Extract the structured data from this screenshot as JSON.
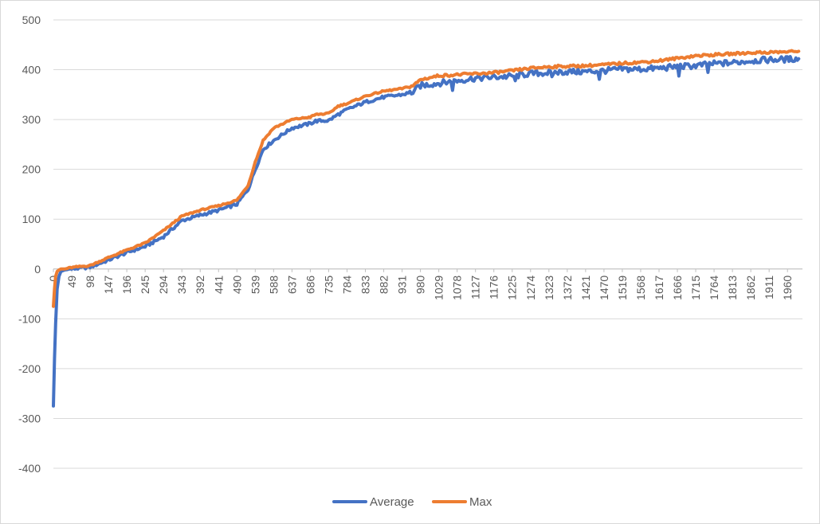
{
  "chart_data": {
    "type": "line",
    "title": "",
    "xlabel": "",
    "ylabel": "",
    "ylim": [
      -400,
      500
    ],
    "y_ticks": [
      500,
      400,
      300,
      200,
      100,
      0,
      -100,
      -200,
      -300,
      -400
    ],
    "x_range": [
      0,
      2000
    ],
    "x_ticks": [
      "0",
      "49",
      "98",
      "147",
      "196",
      "245",
      "294",
      "343",
      "392",
      "441",
      "490",
      "539",
      "588",
      "637",
      "686",
      "735",
      "784",
      "833",
      "882",
      "931",
      "980",
      "1029",
      "1078",
      "1127",
      "1176",
      "1225",
      "1274",
      "1323",
      "1372",
      "1421",
      "1470",
      "1519",
      "1568",
      "1617",
      "1666",
      "1715",
      "1764",
      "1813",
      "1862",
      "1911",
      "1960"
    ],
    "grid": "horizontal",
    "legend_position": "bottom",
    "series": [
      {
        "name": "Average",
        "color": "#4472C4",
        "x": [
          0,
          3,
          6,
          10,
          15,
          20,
          30,
          49,
          98,
          147,
          196,
          245,
          294,
          343,
          392,
          441,
          490,
          520,
          539,
          560,
          588,
          637,
          686,
          700,
          735,
          760,
          784,
          833,
          882,
          931,
          960,
          980,
          1029,
          1078,
          1127,
          1176,
          1225,
          1274,
          1323,
          1372,
          1421,
          1470,
          1519,
          1568,
          1617,
          1666,
          1715,
          1764,
          1813,
          1862,
          1911,
          1960,
          1990
        ],
        "values": [
          -275,
          -180,
          -110,
          -40,
          -15,
          -5,
          -2,
          0,
          4,
          18,
          33,
          45,
          65,
          97,
          108,
          118,
          130,
          160,
          200,
          240,
          258,
          283,
          292,
          297,
          298,
          310,
          320,
          335,
          345,
          350,
          355,
          368,
          373,
          378,
          383,
          385,
          387,
          392,
          394,
          396,
          396,
          398,
          401,
          401,
          403,
          406,
          408,
          412,
          414,
          418,
          420,
          421,
          422
        ]
      },
      {
        "name": "Max",
        "color": "#ED7D31",
        "x": [
          0,
          3,
          6,
          10,
          15,
          20,
          30,
          49,
          98,
          147,
          196,
          245,
          294,
          343,
          392,
          441,
          490,
          520,
          539,
          560,
          588,
          637,
          686,
          700,
          735,
          760,
          784,
          833,
          882,
          931,
          960,
          980,
          1029,
          1078,
          1127,
          1176,
          1225,
          1274,
          1323,
          1372,
          1421,
          1470,
          1519,
          1568,
          1617,
          1666,
          1715,
          1764,
          1813,
          1862,
          1911,
          1960,
          1990
        ],
        "values": [
          -75,
          -40,
          -15,
          -5,
          -2,
          0,
          0,
          3,
          7,
          23,
          38,
          52,
          77,
          106,
          118,
          127,
          138,
          168,
          215,
          258,
          283,
          300,
          305,
          310,
          312,
          327,
          332,
          347,
          357,
          362,
          368,
          380,
          388,
          390,
          392,
          394,
          398,
          403,
          406,
          407,
          408,
          410,
          413,
          415,
          418,
          423,
          428,
          430,
          432,
          434,
          435,
          436,
          437
        ]
      }
    ]
  }
}
